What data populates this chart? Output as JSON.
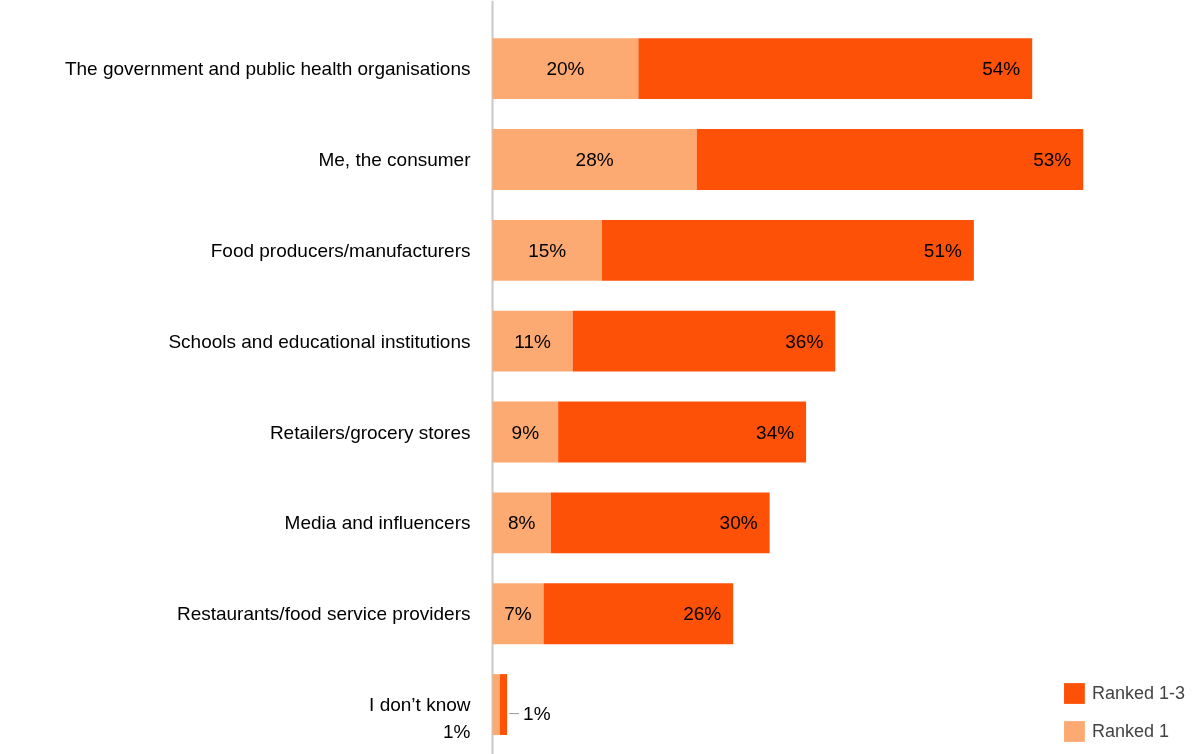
{
  "chart_data": {
    "type": "bar",
    "orientation": "horizontal",
    "stacked": true,
    "legend": "bottom right",
    "grid": false,
    "categories": [
      "The government and public health organisations",
      "Me, the consumer",
      "Food producers/manufacturers",
      "Schools and educational institutions",
      "Retailers/grocery stores",
      "Media and influencers",
      "Restaurants/food service providers",
      "I don’t know"
    ],
    "series": [
      {
        "name": "Ranked 1",
        "color": "#fdaa72",
        "values": [
          20,
          28,
          15,
          11,
          9,
          8,
          7,
          1
        ],
        "value_labels": [
          "20%",
          "28%",
          "15%",
          "11%",
          "9%",
          "8%",
          "7%",
          "1%"
        ]
      },
      {
        "name": "Ranked 1-3",
        "color": "#fd5108",
        "values": [
          54,
          53,
          51,
          36,
          34,
          30,
          26,
          1
        ],
        "value_labels": [
          "54%",
          "53%",
          "51%",
          "36%",
          "34%",
          "30%",
          "26%",
          "1%"
        ]
      }
    ]
  }
}
